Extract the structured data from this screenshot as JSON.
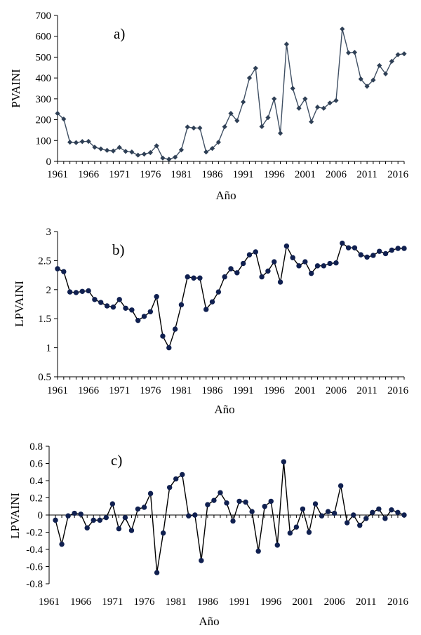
{
  "chart_data": [
    {
      "type": "line",
      "panel_label": "a)",
      "title": "",
      "xlabel": "Año",
      "ylabel": "PVAINI",
      "marker": "diamond",
      "line_color": "#3f4f63",
      "marker_color": "#2e3f55",
      "x_ticks": [
        "1961",
        "1966",
        "1971",
        "1976",
        "1981",
        "1986",
        "1991",
        "1996",
        "2001",
        "2006",
        "2011",
        "2016"
      ],
      "y_ticks": [
        "0",
        "100",
        "200",
        "300",
        "400",
        "500",
        "600",
        "700"
      ],
      "ylim": [
        0,
        700
      ],
      "x": [
        1961,
        1962,
        1963,
        1964,
        1965,
        1966,
        1967,
        1968,
        1969,
        1970,
        1971,
        1972,
        1973,
        1974,
        1975,
        1976,
        1977,
        1978,
        1979,
        1980,
        1981,
        1982,
        1983,
        1984,
        1985,
        1986,
        1987,
        1988,
        1989,
        1990,
        1991,
        1992,
        1993,
        1994,
        1995,
        1996,
        1997,
        1998,
        1999,
        2000,
        2001,
        2002,
        2003,
        2004,
        2005,
        2006,
        2007,
        2008,
        2009,
        2010,
        2011,
        2012,
        2013,
        2014,
        2015,
        2016,
        2017
      ],
      "values": [
        230,
        203,
        92,
        90,
        95,
        96,
        68,
        60,
        53,
        50,
        67,
        48,
        45,
        30,
        35,
        42,
        75,
        16,
        10,
        20,
        55,
        165,
        160,
        160,
        45,
        62,
        92,
        166,
        230,
        195,
        285,
        400,
        447,
        167,
        210,
        300,
        135,
        562,
        350,
        255,
        300,
        190,
        260,
        255,
        280,
        292,
        635,
        521,
        523,
        395,
        360,
        390,
        460,
        420,
        480,
        512,
        516
      ]
    },
    {
      "type": "line",
      "panel_label": "b)",
      "title": "",
      "xlabel": "Año",
      "ylabel": "LPVAINI",
      "marker": "circle",
      "line_color": "#000000",
      "marker_color": "#102050",
      "x_ticks": [
        "1961",
        "1966",
        "1971",
        "1976",
        "1981",
        "1986",
        "1991",
        "1996",
        "2001",
        "2006",
        "2011",
        "2016"
      ],
      "y_ticks": [
        "0.5",
        "1",
        "1.5",
        "2",
        "2.5",
        "3"
      ],
      "ylim": [
        0.5,
        3
      ],
      "x": [
        1961,
        1962,
        1963,
        1964,
        1965,
        1966,
        1967,
        1968,
        1969,
        1970,
        1971,
        1972,
        1973,
        1974,
        1975,
        1976,
        1977,
        1978,
        1979,
        1980,
        1981,
        1982,
        1983,
        1984,
        1985,
        1986,
        1987,
        1988,
        1989,
        1990,
        1991,
        1992,
        1993,
        1994,
        1995,
        1996,
        1997,
        1998,
        1999,
        2000,
        2001,
        2002,
        2003,
        2004,
        2005,
        2006,
        2007,
        2008,
        2009,
        2010,
        2011,
        2012,
        2013,
        2014,
        2015,
        2016,
        2017
      ],
      "values": [
        2.36,
        2.31,
        1.96,
        1.95,
        1.97,
        1.98,
        1.83,
        1.78,
        1.72,
        1.7,
        1.83,
        1.68,
        1.65,
        1.47,
        1.54,
        1.62,
        1.88,
        1.2,
        1.0,
        1.32,
        1.74,
        2.22,
        2.2,
        2.2,
        1.66,
        1.79,
        1.96,
        2.22,
        2.36,
        2.29,
        2.45,
        2.6,
        2.65,
        2.22,
        2.32,
        2.48,
        2.13,
        2.75,
        2.55,
        2.41,
        2.48,
        2.28,
        2.41,
        2.41,
        2.45,
        2.46,
        2.8,
        2.72,
        2.72,
        2.6,
        2.56,
        2.59,
        2.66,
        2.62,
        2.68,
        2.71,
        2.71
      ]
    },
    {
      "type": "line",
      "panel_label": "c)",
      "title": "",
      "xlabel": "Año",
      "ylabel": "LPVAINI",
      "marker": "circle",
      "line_color": "#000000",
      "marker_color": "#102050",
      "x_ticks": [
        "1961",
        "1966",
        "1971",
        "1976",
        "1981",
        "1986",
        "1991",
        "1996",
        "2001",
        "2006",
        "2011",
        "2016"
      ],
      "y_ticks": [
        "-0.8",
        "-0.6",
        "-0.4",
        "-0.2",
        "0",
        "0.2",
        "0.4",
        "0.6",
        "0.8"
      ],
      "ylim": [
        -0.8,
        0.8
      ],
      "x": [
        1962,
        1963,
        1964,
        1965,
        1966,
        1967,
        1968,
        1969,
        1970,
        1971,
        1972,
        1973,
        1974,
        1975,
        1976,
        1977,
        1978,
        1979,
        1980,
        1981,
        1982,
        1983,
        1984,
        1985,
        1986,
        1987,
        1988,
        1989,
        1990,
        1991,
        1992,
        1993,
        1994,
        1995,
        1996,
        1997,
        1998,
        1999,
        2000,
        2001,
        2002,
        2003,
        2004,
        2005,
        2006,
        2007,
        2008,
        2009,
        2010,
        2011,
        2012,
        2013,
        2014,
        2015,
        2016,
        2017
      ],
      "values": [
        -0.06,
        -0.34,
        -0.01,
        0.02,
        0.01,
        -0.15,
        -0.06,
        -0.06,
        -0.03,
        0.13,
        -0.16,
        -0.03,
        -0.18,
        0.07,
        0.09,
        0.25,
        -0.67,
        -0.21,
        0.32,
        0.42,
        0.47,
        -0.01,
        0.0,
        -0.53,
        0.12,
        0.17,
        0.26,
        0.14,
        -0.07,
        0.16,
        0.15,
        0.04,
        -0.42,
        0.1,
        0.16,
        -0.35,
        0.62,
        -0.21,
        -0.14,
        0.07,
        -0.2,
        0.13,
        -0.01,
        0.04,
        0.02,
        0.34,
        -0.09,
        0.0,
        -0.12,
        -0.04,
        0.03,
        0.07,
        -0.04,
        0.06,
        0.03,
        0.0
      ]
    }
  ]
}
